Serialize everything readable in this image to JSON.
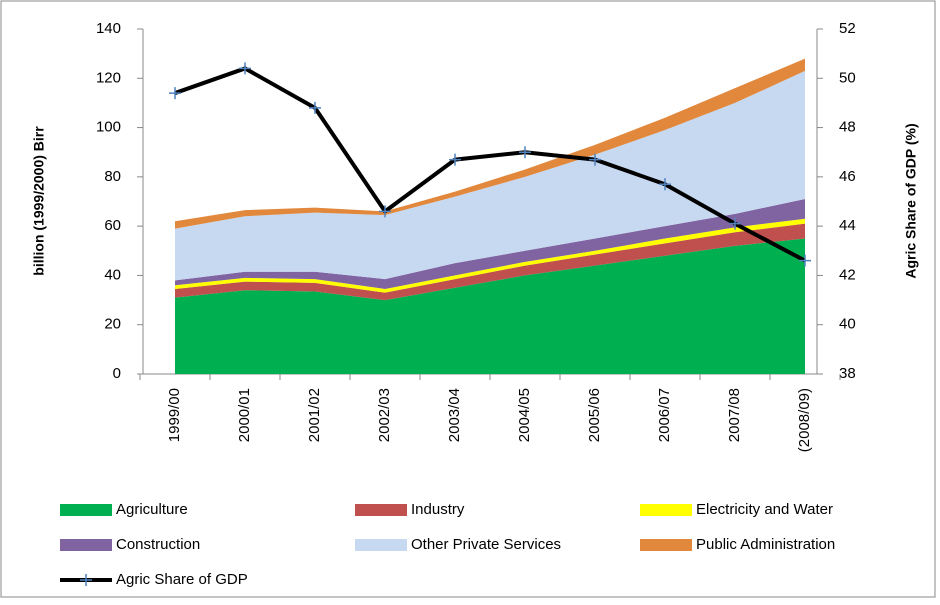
{
  "chart_data": {
    "type": "area",
    "categories": [
      "1999/00",
      "2000/01",
      "2001/02",
      "2002/03",
      "2003/04",
      "2004/05",
      "2005/06",
      "2006/07",
      "2007/08",
      "(2008/09)"
    ],
    "ylabel": "billion (1999/2000) Birr",
    "y2label": "Agric Share of GDP (%)",
    "ylim": [
      0,
      140
    ],
    "yticks": [
      0,
      20,
      40,
      60,
      80,
      100,
      120,
      140
    ],
    "y2lim": [
      38,
      52
    ],
    "y2ticks": [
      38,
      40,
      42,
      44,
      46,
      48,
      50,
      52
    ],
    "series": [
      {
        "name": "Agriculture",
        "color": "#00b050",
        "values": [
          31,
          34,
          33.5,
          30,
          35,
          40,
          44,
          48,
          52,
          55
        ]
      },
      {
        "name": "Industry",
        "color": "#c0504d",
        "values": [
          3.5,
          3.5,
          3.5,
          3,
          3.5,
          4,
          4.5,
          5,
          5.5,
          6
        ]
      },
      {
        "name": "Electricity and Water",
        "color": "#ffff00",
        "values": [
          1.5,
          1.5,
          1.5,
          1.5,
          1.5,
          1.5,
          1.5,
          2,
          2,
          2
        ]
      },
      {
        "name": "Construction",
        "color": "#8064a2",
        "values": [
          2,
          2.5,
          3,
          4,
          5,
          4.5,
          5,
          5,
          5.5,
          8
        ]
      },
      {
        "name": "Other Private Services",
        "color": "#c6d9f1",
        "values": [
          21,
          22.5,
          24,
          26,
          27,
          30,
          34,
          39,
          45,
          52
        ]
      },
      {
        "name": "Public Administration",
        "color": "#e2883c",
        "values": [
          3,
          2.5,
          2,
          1.5,
          2,
          3,
          4,
          5,
          6,
          5
        ]
      },
      {
        "name": "Agric Share of GDP",
        "color": "#000000",
        "marker_color": "#4f81bd",
        "type": "line",
        "axis": "y2",
        "values": [
          49.4,
          50.4,
          48.8,
          44.6,
          46.7,
          47.0,
          46.7,
          45.7,
          44.1,
          42.6
        ]
      }
    ]
  }
}
